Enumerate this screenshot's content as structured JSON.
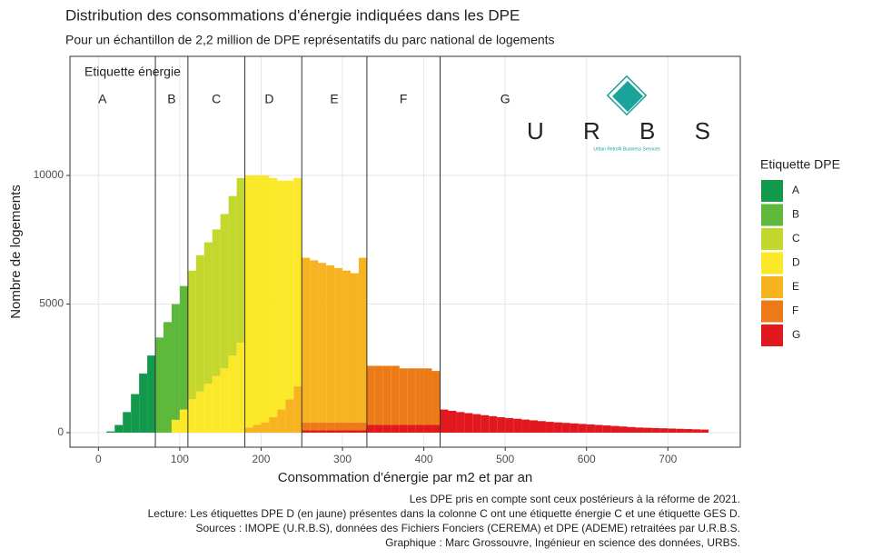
{
  "chart_data": {
    "type": "histogram",
    "title": "Distribution des consommations d'énergie indiquées dans les DPE",
    "subtitle": "Pour un échantillon de 2,2 million de DPE représentatifs du parc national de logements",
    "x_label": "Consommation d'énergie par m2 et par an",
    "y_label": "Nombre de logements",
    "annotation": "Etiquette énergie",
    "legend_title": "Etiquette DPE",
    "legend_position": "right",
    "grid": true,
    "xlim": [
      -35,
      789
    ],
    "ylim": [
      -565,
      14630
    ],
    "xticks": [
      0,
      100,
      200,
      300,
      400,
      500,
      600,
      700
    ],
    "yticks": [
      0,
      5000,
      10000
    ],
    "thresholds": [
      70,
      110,
      180,
      250,
      330,
      420
    ],
    "zone_labels": [
      {
        "label": "A",
        "x": 5
      },
      {
        "label": "B",
        "x": 90
      },
      {
        "label": "C",
        "x": 145
      },
      {
        "label": "D",
        "x": 210
      },
      {
        "label": "E",
        "x": 290
      },
      {
        "label": "F",
        "x": 375
      },
      {
        "label": "G",
        "x": 500
      }
    ],
    "logo": {
      "text": "U R B S",
      "subtext": "Urban Retrofit Business Services"
    },
    "captions": [
      "Les DPE pris en compte sont ceux postérieurs à la réforme de 2021.",
      "Lecture: Les étiquettes DPE D (en jaune) présentes dans la colonne C ont une étiquette énergie C et une étiquette GES D.",
      "Sources : IMOPE (U.R.B.S), données des Fichiers Fonciers (CEREMA) et DPE (ADEME) retraitées par U.R.B.S.",
      "Graphique : Marc Grossouvre, Ingénieur en science des données, URBS."
    ],
    "bins": [
      0,
      10,
      20,
      30,
      40,
      50,
      60,
      70,
      80,
      90,
      100,
      110,
      120,
      130,
      140,
      150,
      160,
      170,
      180,
      190,
      200,
      210,
      220,
      230,
      240,
      250,
      260,
      270,
      280,
      290,
      300,
      310,
      320,
      330,
      340,
      350,
      360,
      370,
      380,
      390,
      400,
      410,
      420,
      430,
      440,
      450,
      460,
      470,
      480,
      490,
      500,
      510,
      520,
      530,
      540,
      550,
      560,
      570,
      580,
      590,
      600,
      610,
      620,
      630,
      640,
      650,
      660,
      670,
      680,
      690,
      700,
      710,
      720,
      730,
      740,
      750
    ],
    "series": [
      {
        "name": "A",
        "color": "#13994b",
        "values": [
          0,
          50,
          300,
          800,
          1500,
          2300,
          3000,
          0,
          0,
          0,
          0,
          0,
          0,
          0,
          0,
          0,
          0,
          0,
          0,
          0,
          0,
          0,
          0,
          0,
          0,
          0,
          0,
          0,
          0,
          0,
          0,
          0,
          0,
          0,
          0,
          0,
          0,
          0,
          0,
          0,
          0,
          0,
          0,
          0,
          0,
          0,
          0,
          0,
          0,
          0,
          0,
          0,
          0,
          0,
          0,
          0,
          0,
          0,
          0,
          0,
          0,
          0,
          0,
          0,
          0,
          0,
          0,
          0,
          0,
          0,
          0,
          0,
          0,
          0,
          0
        ]
      },
      {
        "name": "B",
        "color": "#5db83c",
        "values": [
          0,
          0,
          0,
          0,
          0,
          0,
          0,
          3700,
          4300,
          4500,
          4800,
          0,
          0,
          0,
          0,
          0,
          0,
          0,
          0,
          0,
          0,
          0,
          0,
          0,
          0,
          0,
          0,
          0,
          0,
          0,
          0,
          0,
          0,
          0,
          0,
          0,
          0,
          0,
          0,
          0,
          0,
          0,
          0,
          0,
          0,
          0,
          0,
          0,
          0,
          0,
          0,
          0,
          0,
          0,
          0,
          0,
          0,
          0,
          0,
          0,
          0,
          0,
          0,
          0,
          0,
          0,
          0,
          0,
          0,
          0,
          0,
          0,
          0,
          0,
          0
        ]
      },
      {
        "name": "C",
        "color": "#c4d72c",
        "values": [
          0,
          0,
          0,
          0,
          0,
          0,
          0,
          0,
          0,
          0,
          0,
          5000,
          5300,
          5500,
          5700,
          6000,
          6200,
          6400,
          0,
          0,
          0,
          0,
          0,
          0,
          0,
          0,
          0,
          0,
          0,
          0,
          0,
          0,
          0,
          0,
          0,
          0,
          0,
          0,
          0,
          0,
          0,
          0,
          0,
          0,
          0,
          0,
          0,
          0,
          0,
          0,
          0,
          0,
          0,
          0,
          0,
          0,
          0,
          0,
          0,
          0,
          0,
          0,
          0,
          0,
          0,
          0,
          0,
          0,
          0,
          0,
          0,
          0,
          0,
          0,
          0
        ]
      },
      {
        "name": "D",
        "color": "#fbe828",
        "values": [
          0,
          0,
          0,
          0,
          0,
          0,
          0,
          0,
          0,
          500,
          900,
          1300,
          1600,
          1900,
          2200,
          2500,
          3000,
          3500,
          9800,
          9700,
          9600,
          9300,
          8900,
          8500,
          8100,
          0,
          0,
          0,
          0,
          0,
          0,
          0,
          0,
          0,
          0,
          0,
          0,
          0,
          0,
          0,
          0,
          0,
          0,
          0,
          0,
          0,
          0,
          0,
          0,
          0,
          0,
          0,
          0,
          0,
          0,
          0,
          0,
          0,
          0,
          0,
          0,
          0,
          0,
          0,
          0,
          0,
          0,
          0,
          0,
          0,
          0,
          0,
          0,
          0,
          0
        ]
      },
      {
        "name": "E",
        "color": "#f8b320",
        "values": [
          0,
          0,
          0,
          0,
          0,
          0,
          0,
          0,
          0,
          0,
          0,
          0,
          0,
          0,
          0,
          0,
          0,
          0,
          200,
          300,
          400,
          600,
          900,
          1300,
          1800,
          6400,
          6300,
          6200,
          6100,
          6000,
          5900,
          5800,
          6400,
          0,
          0,
          0,
          0,
          0,
          0,
          0,
          0,
          0,
          0,
          0,
          0,
          0,
          0,
          0,
          0,
          0,
          0,
          0,
          0,
          0,
          0,
          0,
          0,
          0,
          0,
          0,
          0,
          0,
          0,
          0,
          0,
          0,
          0,
          0,
          0,
          0,
          0,
          0,
          0,
          0,
          0
        ]
      },
      {
        "name": "F",
        "color": "#ec7a17",
        "values": [
          0,
          0,
          0,
          0,
          0,
          0,
          0,
          0,
          0,
          0,
          0,
          0,
          0,
          0,
          0,
          0,
          0,
          0,
          0,
          0,
          0,
          0,
          0,
          0,
          0,
          300,
          300,
          300,
          300,
          300,
          300,
          300,
          300,
          2300,
          2300,
          2300,
          2300,
          2200,
          2200,
          2200,
          2200,
          2100,
          0,
          0,
          0,
          0,
          0,
          0,
          0,
          0,
          0,
          0,
          0,
          0,
          0,
          0,
          0,
          0,
          0,
          0,
          0,
          0,
          0,
          0,
          0,
          0,
          0,
          0,
          0,
          0,
          0,
          0,
          0,
          0,
          0
        ]
      },
      {
        "name": "G",
        "color": "#e1191e",
        "values": [
          0,
          0,
          0,
          0,
          0,
          0,
          0,
          0,
          0,
          0,
          0,
          0,
          0,
          0,
          0,
          0,
          0,
          0,
          0,
          0,
          0,
          0,
          0,
          0,
          0,
          100,
          100,
          100,
          100,
          100,
          100,
          100,
          100,
          300,
          300,
          300,
          300,
          300,
          300,
          300,
          300,
          300,
          900,
          850,
          800,
          760,
          720,
          680,
          640,
          600,
          570,
          540,
          510,
          480,
          450,
          420,
          400,
          380,
          360,
          340,
          320,
          300,
          280,
          260,
          240,
          220,
          200,
          190,
          180,
          170,
          160,
          150,
          140,
          130,
          120
        ]
      }
    ]
  }
}
